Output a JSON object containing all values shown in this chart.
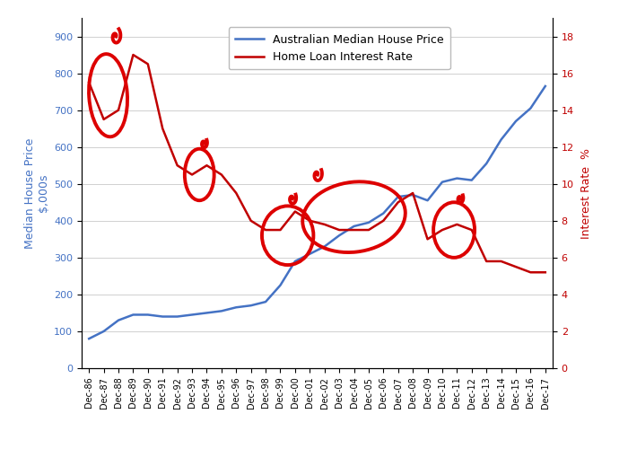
{
  "ylabel_left": "Median House Price\n$,000s",
  "ylabel_right": "Interest Rate  %",
  "house_color": "#4472C4",
  "rate_color": "#C00000",
  "legend_house": "Australian Median House Price",
  "legend_rate": "Home Loan Interest Rate",
  "years": [
    "Dec-86",
    "Dec-87",
    "Dec-88",
    "Dec-89",
    "Dec-90",
    "Dec-91",
    "Dec-92",
    "Dec-93",
    "Dec-94",
    "Dec-95",
    "Dec-96",
    "Dec-97",
    "Dec-98",
    "Dec-99",
    "Dec-00",
    "Dec-01",
    "Dec-02",
    "Dec-03",
    "Dec-04",
    "Dec-05",
    "Dec-06",
    "Dec-07",
    "Dec-08",
    "Dec-09",
    "Dec-10",
    "Dec-11",
    "Dec-12",
    "Dec-13",
    "Dec-14",
    "Dec-15",
    "Dec-16",
    "Dec-17"
  ],
  "house_prices": [
    80,
    100,
    130,
    145,
    145,
    140,
    140,
    145,
    150,
    155,
    165,
    170,
    180,
    225,
    290,
    310,
    330,
    360,
    385,
    395,
    420,
    465,
    470,
    455,
    505,
    515,
    510,
    555,
    620,
    670,
    705,
    765
  ],
  "interest_rates": [
    15.5,
    13.5,
    14.0,
    17.0,
    16.5,
    13.0,
    11.0,
    10.5,
    11.0,
    10.5,
    9.5,
    8.0,
    7.5,
    7.5,
    8.5,
    8.0,
    7.8,
    7.5,
    7.5,
    7.5,
    8.0,
    9.0,
    9.5,
    7.0,
    7.5,
    7.8,
    7.5,
    5.8,
    5.8,
    5.5,
    5.2,
    5.2
  ],
  "ylim_left": [
    0,
    950
  ],
  "ylim_right": [
    0,
    19
  ],
  "yticks_left": [
    0,
    100,
    200,
    300,
    400,
    500,
    600,
    700,
    800,
    900
  ],
  "yticks_right": [
    0,
    2,
    4,
    6,
    8,
    10,
    12,
    14,
    16,
    18
  ],
  "background_color": "#ffffff",
  "grid_color": "#d0d0d0"
}
